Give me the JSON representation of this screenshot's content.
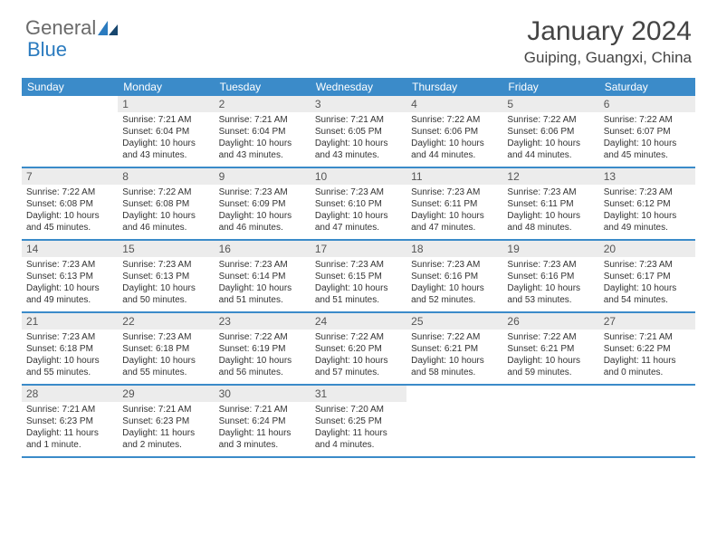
{
  "logo": {
    "text1": "General",
    "text2": "Blue"
  },
  "title": "January 2024",
  "location": "Guiping, Guangxi, China",
  "colors": {
    "header_bg": "#3b8bc9",
    "header_text": "#ffffff",
    "daynum_bg": "#ececec",
    "daynum_text": "#555555",
    "body_text": "#333333",
    "rule": "#3b8bc9",
    "logo_gray": "#6a6a6a",
    "logo_blue": "#2b7bbf"
  },
  "weekdays": [
    "Sunday",
    "Monday",
    "Tuesday",
    "Wednesday",
    "Thursday",
    "Friday",
    "Saturday"
  ],
  "weeks": [
    [
      {
        "n": "",
        "sr": "",
        "ss": "",
        "dl": ""
      },
      {
        "n": "1",
        "sr": "Sunrise: 7:21 AM",
        "ss": "Sunset: 6:04 PM",
        "dl": "Daylight: 10 hours and 43 minutes."
      },
      {
        "n": "2",
        "sr": "Sunrise: 7:21 AM",
        "ss": "Sunset: 6:04 PM",
        "dl": "Daylight: 10 hours and 43 minutes."
      },
      {
        "n": "3",
        "sr": "Sunrise: 7:21 AM",
        "ss": "Sunset: 6:05 PM",
        "dl": "Daylight: 10 hours and 43 minutes."
      },
      {
        "n": "4",
        "sr": "Sunrise: 7:22 AM",
        "ss": "Sunset: 6:06 PM",
        "dl": "Daylight: 10 hours and 44 minutes."
      },
      {
        "n": "5",
        "sr": "Sunrise: 7:22 AM",
        "ss": "Sunset: 6:06 PM",
        "dl": "Daylight: 10 hours and 44 minutes."
      },
      {
        "n": "6",
        "sr": "Sunrise: 7:22 AM",
        "ss": "Sunset: 6:07 PM",
        "dl": "Daylight: 10 hours and 45 minutes."
      }
    ],
    [
      {
        "n": "7",
        "sr": "Sunrise: 7:22 AM",
        "ss": "Sunset: 6:08 PM",
        "dl": "Daylight: 10 hours and 45 minutes."
      },
      {
        "n": "8",
        "sr": "Sunrise: 7:22 AM",
        "ss": "Sunset: 6:08 PM",
        "dl": "Daylight: 10 hours and 46 minutes."
      },
      {
        "n": "9",
        "sr": "Sunrise: 7:23 AM",
        "ss": "Sunset: 6:09 PM",
        "dl": "Daylight: 10 hours and 46 minutes."
      },
      {
        "n": "10",
        "sr": "Sunrise: 7:23 AM",
        "ss": "Sunset: 6:10 PM",
        "dl": "Daylight: 10 hours and 47 minutes."
      },
      {
        "n": "11",
        "sr": "Sunrise: 7:23 AM",
        "ss": "Sunset: 6:11 PM",
        "dl": "Daylight: 10 hours and 47 minutes."
      },
      {
        "n": "12",
        "sr": "Sunrise: 7:23 AM",
        "ss": "Sunset: 6:11 PM",
        "dl": "Daylight: 10 hours and 48 minutes."
      },
      {
        "n": "13",
        "sr": "Sunrise: 7:23 AM",
        "ss": "Sunset: 6:12 PM",
        "dl": "Daylight: 10 hours and 49 minutes."
      }
    ],
    [
      {
        "n": "14",
        "sr": "Sunrise: 7:23 AM",
        "ss": "Sunset: 6:13 PM",
        "dl": "Daylight: 10 hours and 49 minutes."
      },
      {
        "n": "15",
        "sr": "Sunrise: 7:23 AM",
        "ss": "Sunset: 6:13 PM",
        "dl": "Daylight: 10 hours and 50 minutes."
      },
      {
        "n": "16",
        "sr": "Sunrise: 7:23 AM",
        "ss": "Sunset: 6:14 PM",
        "dl": "Daylight: 10 hours and 51 minutes."
      },
      {
        "n": "17",
        "sr": "Sunrise: 7:23 AM",
        "ss": "Sunset: 6:15 PM",
        "dl": "Daylight: 10 hours and 51 minutes."
      },
      {
        "n": "18",
        "sr": "Sunrise: 7:23 AM",
        "ss": "Sunset: 6:16 PM",
        "dl": "Daylight: 10 hours and 52 minutes."
      },
      {
        "n": "19",
        "sr": "Sunrise: 7:23 AM",
        "ss": "Sunset: 6:16 PM",
        "dl": "Daylight: 10 hours and 53 minutes."
      },
      {
        "n": "20",
        "sr": "Sunrise: 7:23 AM",
        "ss": "Sunset: 6:17 PM",
        "dl": "Daylight: 10 hours and 54 minutes."
      }
    ],
    [
      {
        "n": "21",
        "sr": "Sunrise: 7:23 AM",
        "ss": "Sunset: 6:18 PM",
        "dl": "Daylight: 10 hours and 55 minutes."
      },
      {
        "n": "22",
        "sr": "Sunrise: 7:23 AM",
        "ss": "Sunset: 6:18 PM",
        "dl": "Daylight: 10 hours and 55 minutes."
      },
      {
        "n": "23",
        "sr": "Sunrise: 7:22 AM",
        "ss": "Sunset: 6:19 PM",
        "dl": "Daylight: 10 hours and 56 minutes."
      },
      {
        "n": "24",
        "sr": "Sunrise: 7:22 AM",
        "ss": "Sunset: 6:20 PM",
        "dl": "Daylight: 10 hours and 57 minutes."
      },
      {
        "n": "25",
        "sr": "Sunrise: 7:22 AM",
        "ss": "Sunset: 6:21 PM",
        "dl": "Daylight: 10 hours and 58 minutes."
      },
      {
        "n": "26",
        "sr": "Sunrise: 7:22 AM",
        "ss": "Sunset: 6:21 PM",
        "dl": "Daylight: 10 hours and 59 minutes."
      },
      {
        "n": "27",
        "sr": "Sunrise: 7:21 AM",
        "ss": "Sunset: 6:22 PM",
        "dl": "Daylight: 11 hours and 0 minutes."
      }
    ],
    [
      {
        "n": "28",
        "sr": "Sunrise: 7:21 AM",
        "ss": "Sunset: 6:23 PM",
        "dl": "Daylight: 11 hours and 1 minute."
      },
      {
        "n": "29",
        "sr": "Sunrise: 7:21 AM",
        "ss": "Sunset: 6:23 PM",
        "dl": "Daylight: 11 hours and 2 minutes."
      },
      {
        "n": "30",
        "sr": "Sunrise: 7:21 AM",
        "ss": "Sunset: 6:24 PM",
        "dl": "Daylight: 11 hours and 3 minutes."
      },
      {
        "n": "31",
        "sr": "Sunrise: 7:20 AM",
        "ss": "Sunset: 6:25 PM",
        "dl": "Daylight: 11 hours and 4 minutes."
      },
      {
        "n": "",
        "sr": "",
        "ss": "",
        "dl": ""
      },
      {
        "n": "",
        "sr": "",
        "ss": "",
        "dl": ""
      },
      {
        "n": "",
        "sr": "",
        "ss": "",
        "dl": ""
      }
    ]
  ]
}
